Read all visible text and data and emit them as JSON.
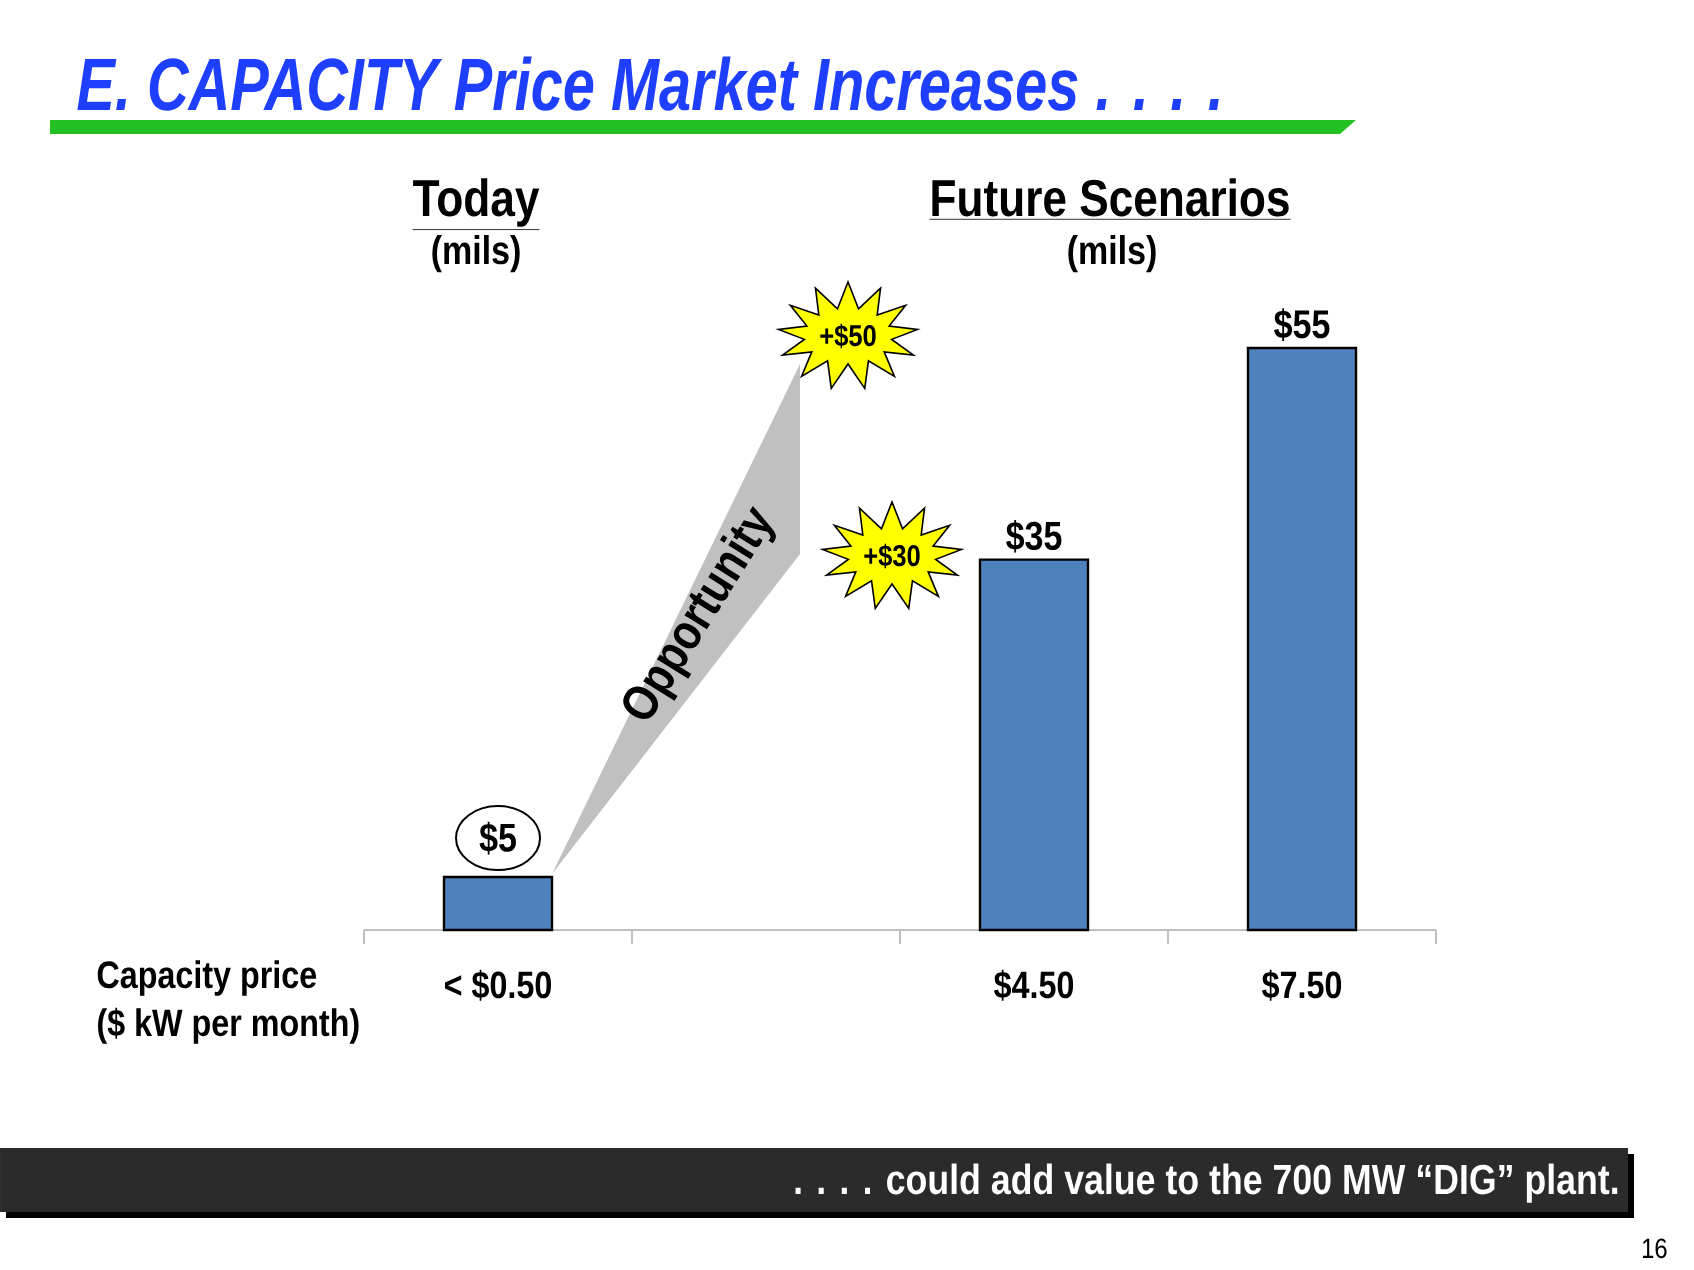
{
  "chart_data": {
    "type": "bar",
    "title": "E. CAPACITY Price Market Increases . . . .",
    "xlabel": "Capacity price ($ kW per month)",
    "categories": [
      "< $0.50",
      null,
      "$4.50",
      "$7.50"
    ],
    "values": [
      5,
      null,
      35,
      55
    ],
    "color": "#4f81bd",
    "value_labels": [
      "$5",
      null,
      "$35",
      "$55"
    ],
    "tick_labels": "x",
    "annotations": [
      "Today",
      "(mils)",
      "Future Scenarios",
      "(mils)",
      "+$50",
      "+$30",
      "Opportunity",
      ". . . . could add value to the 700 MW “DIG” plant.",
      "16"
    ]
  }
}
